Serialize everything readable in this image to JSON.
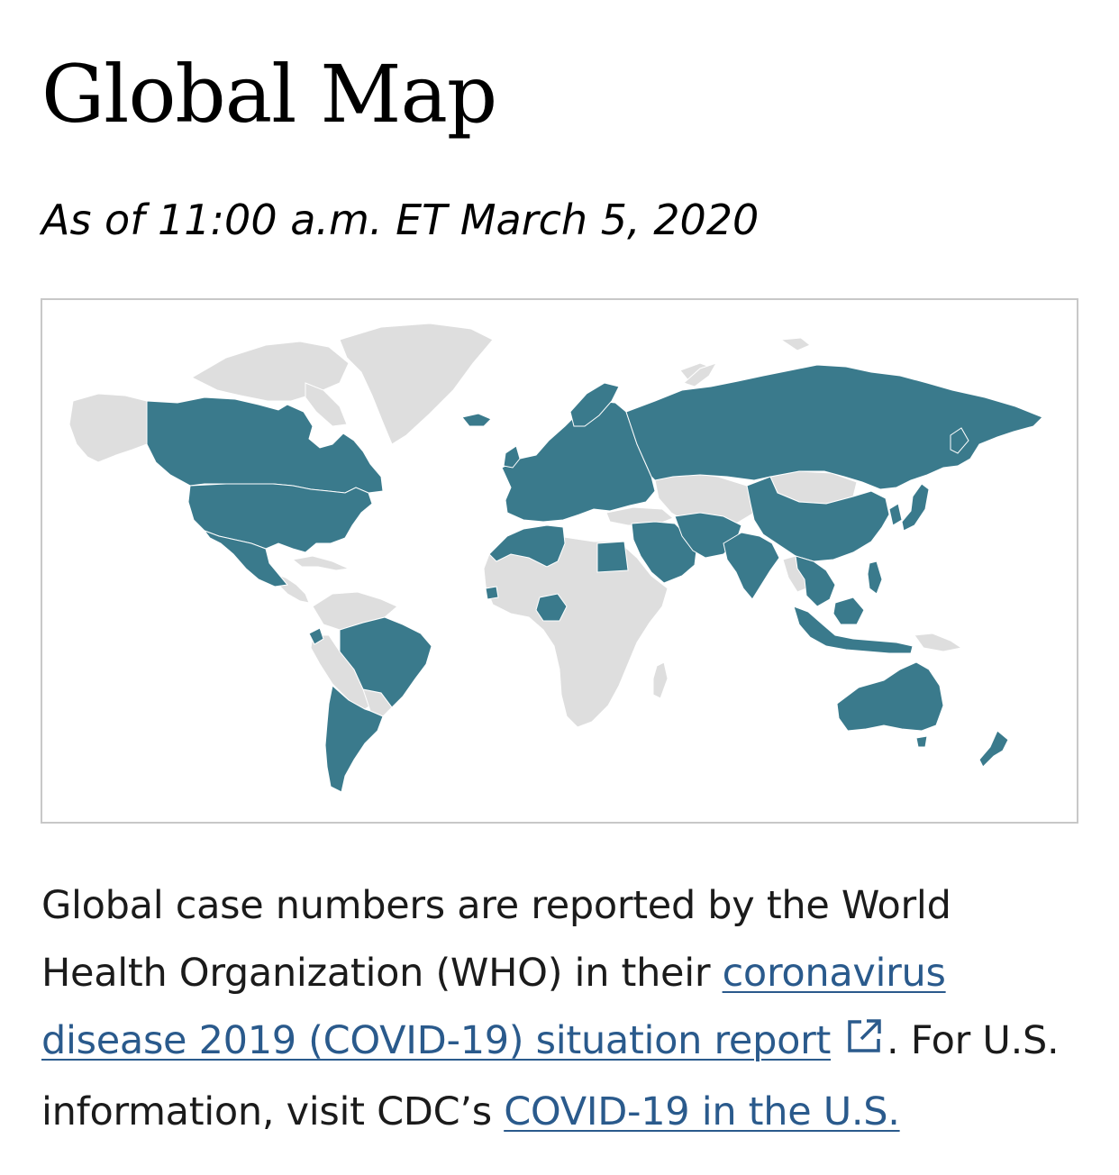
{
  "page": {
    "title": "Global Map",
    "subtitle": "As of 11:00 a.m. ET March 5, 2020"
  },
  "map": {
    "affected_color": "#3a7a8c",
    "unaffected_color": "#dedede",
    "border_color": "#c8c8c8",
    "affected_regions": [
      "Canada",
      "United States",
      "Mexico",
      "Ecuador",
      "Brazil",
      "Chile",
      "Argentina",
      "Europe",
      "Russia",
      "Morocco",
      "Algeria",
      "Tunisia",
      "Senegal",
      "Nigeria",
      "Egypt",
      "Middle East",
      "Iran",
      "India",
      "China",
      "Japan",
      "South Korea",
      "Southeast Asia",
      "Indonesia",
      "Australia",
      "New Zealand",
      "Iceland",
      "Ukraine"
    ]
  },
  "description": {
    "text_1": "Global case numbers are reported by the World Health Organization (WHO) in their ",
    "link_1": "coronavirus disease 2019 (COVID-19) situation report",
    "text_2": ". For U.S. information, visit CDC’s ",
    "link_2": "COVID-19 in the U.S."
  },
  "icons": {
    "external_link": "external-link-icon"
  }
}
